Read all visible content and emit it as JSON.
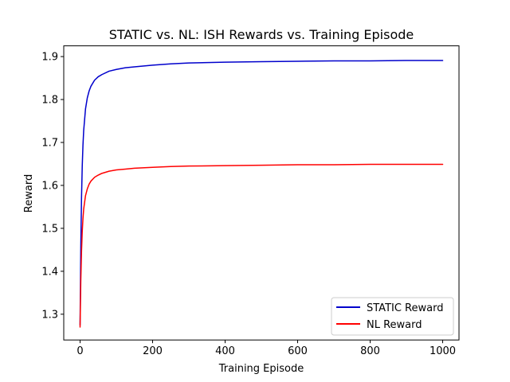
{
  "chart_data": {
    "type": "line",
    "title": "STATIC vs. NL: ISH Rewards vs. Training Episode",
    "xlabel": "Training Episode",
    "ylabel": "Reward",
    "xlim": [
      -45,
      1045
    ],
    "ylim": [
      1.24,
      1.925
    ],
    "xticks": [
      0,
      200,
      400,
      600,
      800,
      1000
    ],
    "yticks": [
      1.3,
      1.4,
      1.5,
      1.6,
      1.7,
      1.8,
      1.9
    ],
    "xtick_labels": [
      "0",
      "200",
      "400",
      "600",
      "800",
      "1000"
    ],
    "ytick_labels": [
      "1.3",
      "1.4",
      "1.5",
      "1.6",
      "1.7",
      "1.8",
      "1.9"
    ],
    "grid": false,
    "legend": {
      "position": "lower-right"
    },
    "series": [
      {
        "name": "STATIC Reward",
        "color": "#0000cc",
        "x": [
          0,
          2,
          4,
          6,
          8,
          10,
          15,
          20,
          25,
          30,
          40,
          50,
          60,
          80,
          100,
          125,
          150,
          200,
          250,
          300,
          400,
          500,
          600,
          700,
          800,
          900,
          1000
        ],
        "y": [
          1.275,
          1.455,
          1.571,
          1.645,
          1.694,
          1.728,
          1.778,
          1.804,
          1.82,
          1.831,
          1.845,
          1.853,
          1.858,
          1.866,
          1.87,
          1.874,
          1.876,
          1.88,
          1.883,
          1.885,
          1.887,
          1.888,
          1.889,
          1.89,
          1.89,
          1.891,
          1.891
        ]
      },
      {
        "name": "NL Reward",
        "color": "#ff0000",
        "x": [
          0,
          2,
          4,
          6,
          8,
          10,
          15,
          20,
          25,
          30,
          40,
          50,
          60,
          80,
          100,
          125,
          150,
          200,
          250,
          300,
          400,
          500,
          600,
          700,
          800,
          900,
          1000
        ],
        "y": [
          1.27,
          1.377,
          1.447,
          1.492,
          1.523,
          1.545,
          1.576,
          1.592,
          1.603,
          1.61,
          1.619,
          1.624,
          1.628,
          1.633,
          1.636,
          1.638,
          1.64,
          1.642,
          1.644,
          1.645,
          1.646,
          1.647,
          1.648,
          1.648,
          1.649,
          1.649,
          1.649
        ]
      }
    ]
  }
}
